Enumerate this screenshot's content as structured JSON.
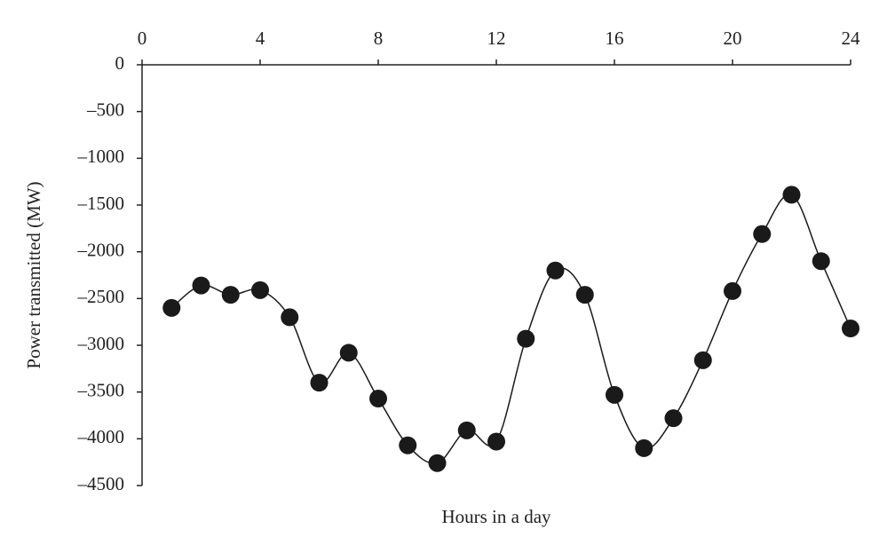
{
  "chart_data": {
    "type": "line",
    "x_label": "Hours in a day",
    "y_label": "Power transmitted (MW)",
    "x": [
      1,
      2,
      3,
      4,
      5,
      6,
      7,
      8,
      9,
      10,
      11,
      12,
      13,
      14,
      15,
      16,
      17,
      18,
      19,
      20,
      21,
      22,
      23,
      24
    ],
    "series": [
      {
        "color": "#1a1a1a",
        "values": [
          -2600,
          -2360,
          -2460,
          -2410,
          -2700,
          -3400,
          -3080,
          -3570,
          -4070,
          -4260,
          -3910,
          -4030,
          -2930,
          -2200,
          -2460,
          -3530,
          -4100,
          -3780,
          -3160,
          -2420,
          -1810,
          -1390,
          -2100,
          -2820
        ]
      }
    ],
    "xlim": [
      0,
      24
    ],
    "xticks": [
      0,
      4,
      8,
      12,
      16,
      20,
      24
    ],
    "ylim": [
      -4500,
      0
    ],
    "yticks": [
      0,
      {
        "value": -500,
        "label": "–500"
      },
      {
        "value": -1000,
        "label": "–1000"
      },
      {
        "value": -1500,
        "label": "–1500"
      },
      {
        "value": -2000,
        "label": "–2000"
      },
      {
        "value": -2500,
        "label": "–2500"
      },
      {
        "value": -3000,
        "label": "–3000"
      },
      {
        "value": -3500,
        "label": "–3500"
      },
      {
        "value": -4000,
        "label": "–4000"
      },
      {
        "value": -4500,
        "label": "–4500"
      }
    ],
    "x_axis_position": "top"
  }
}
